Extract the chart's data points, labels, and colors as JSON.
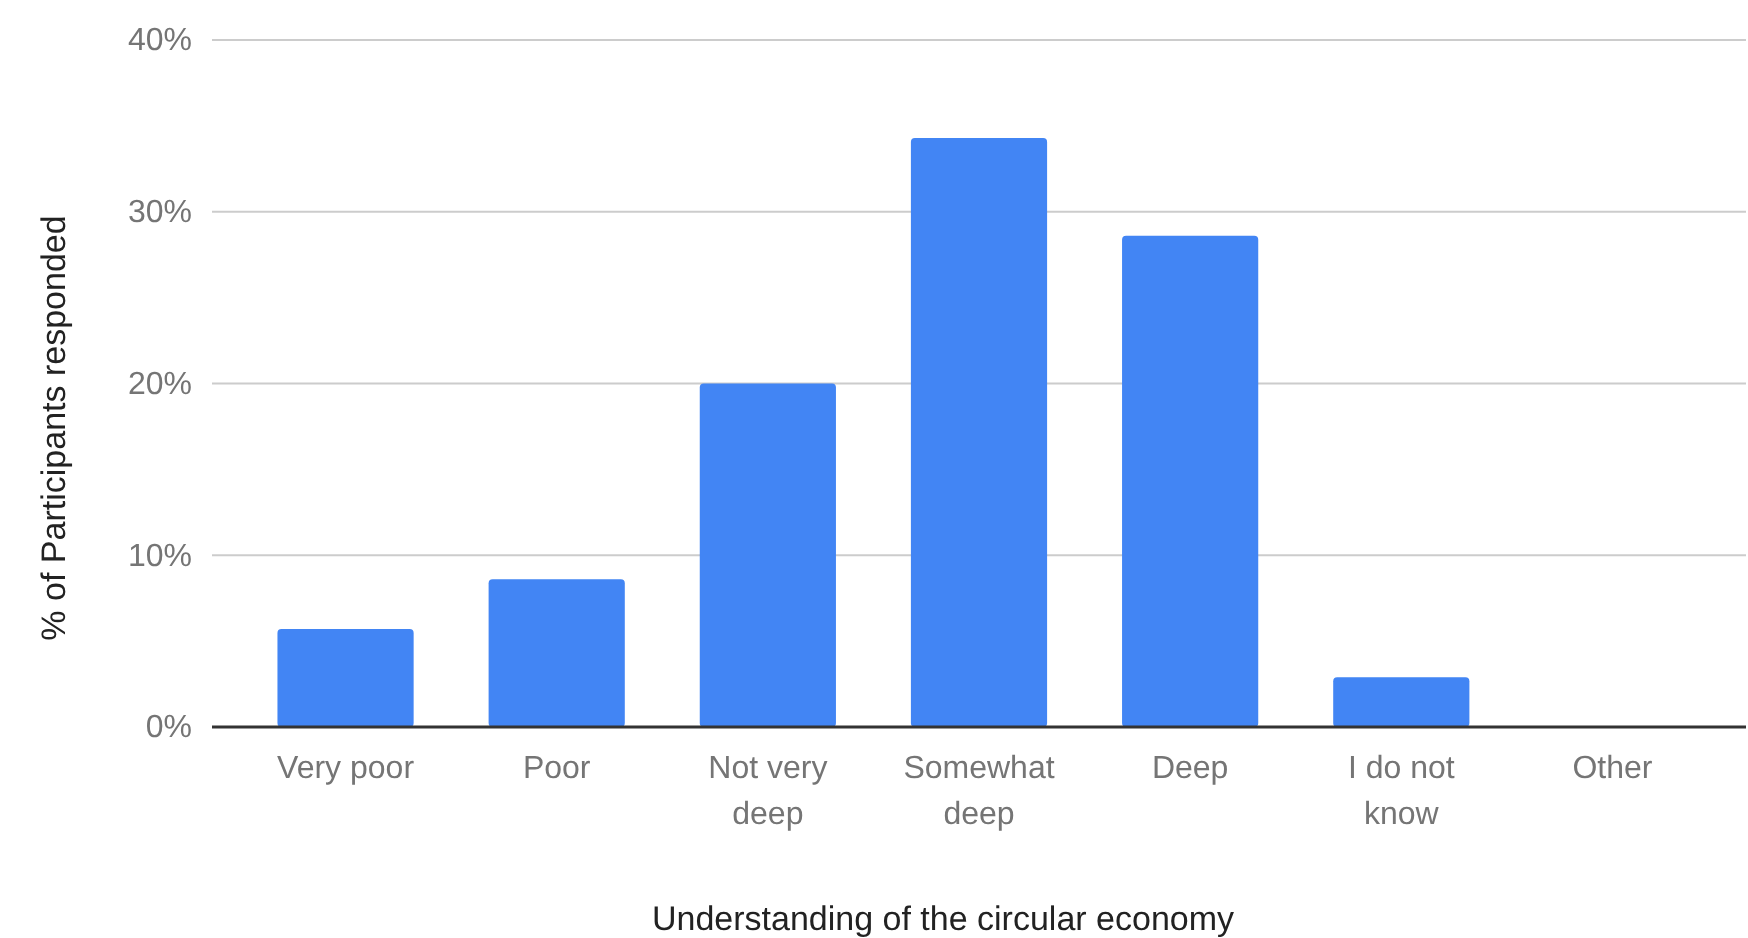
{
  "chart_data": {
    "type": "bar",
    "xlabel": "Understanding of the circular economy",
    "ylabel": "% of Participants responded",
    "categories": [
      "Very poor",
      "Poor",
      "Not very deep",
      "Somewhat deep",
      "Deep",
      "I do not know",
      "Other"
    ],
    "values": [
      5.7,
      8.6,
      20,
      34.3,
      28.6,
      2.9,
      0
    ],
    "color": "#4285f4",
    "ylim": [
      0,
      40
    ],
    "yticks": [
      {
        "value": 0,
        "label": "0%"
      },
      {
        "value": 10,
        "label": "10%"
      },
      {
        "value": 20,
        "label": "20%"
      },
      {
        "value": 30,
        "label": "30%"
      },
      {
        "value": 40,
        "label": "40%"
      }
    ],
    "grid": "y"
  }
}
